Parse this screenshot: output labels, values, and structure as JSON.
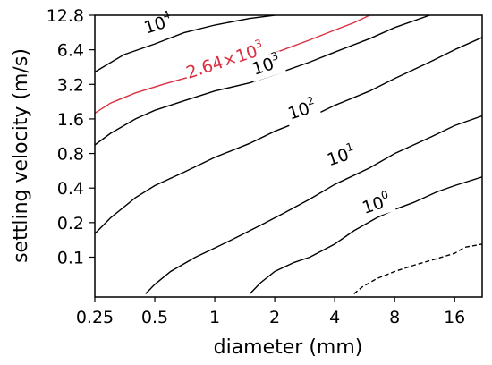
{
  "chart_data": {
    "type": "contour",
    "title": "",
    "xlabel": "diameter (mm)",
    "ylabel": "settling velocity (m/s)",
    "xscale": "log2",
    "yscale": "log2",
    "xlim": [
      0.25,
      22
    ],
    "ylim": [
      0.045,
      12.8
    ],
    "xticks": [
      {
        "value": 0.25,
        "label": "0.25"
      },
      {
        "value": 0.5,
        "label": "0.5"
      },
      {
        "value": 1,
        "label": "1"
      },
      {
        "value": 2,
        "label": "2"
      },
      {
        "value": 4,
        "label": "4"
      },
      {
        "value": 8,
        "label": "8"
      },
      {
        "value": 16,
        "label": "16"
      }
    ],
    "yticks": [
      {
        "value": 0.1,
        "label": "0.1"
      },
      {
        "value": 0.2,
        "label": "0.2"
      },
      {
        "value": 0.4,
        "label": "0.4"
      },
      {
        "value": 0.8,
        "label": "0.8"
      },
      {
        "value": 1.6,
        "label": "1.6"
      },
      {
        "value": 3.2,
        "label": "3.2"
      },
      {
        "value": 6.4,
        "label": "6.4"
      },
      {
        "value": 12.8,
        "label": "12.8"
      }
    ],
    "grid": false,
    "contours": [
      {
        "level": 10000,
        "label_base": "10",
        "label_exp": "4",
        "color": "#000000",
        "dash": false,
        "label_at": [
          0.53,
          9.6
        ],
        "label_angle": -18,
        "points": [
          [
            0.25,
            4.1
          ],
          [
            0.35,
            5.8
          ],
          [
            0.5,
            7.2
          ],
          [
            0.7,
            9.0
          ],
          [
            1.0,
            10.5
          ],
          [
            1.5,
            12.0
          ],
          [
            2.0,
            12.8
          ]
        ]
      },
      {
        "level": 2640,
        "label_base": "2.64×10",
        "label_exp": "3",
        "color": "#d9303f",
        "dash": false,
        "label_at": [
          1.15,
          4.6
        ],
        "label_angle": -18,
        "points": [
          [
            0.25,
            1.8
          ],
          [
            0.3,
            2.2
          ],
          [
            0.4,
            2.7
          ],
          [
            0.55,
            3.2
          ],
          [
            0.7,
            3.6
          ],
          [
            1.0,
            4.2
          ],
          [
            1.5,
            5.0
          ],
          [
            2.0,
            6.0
          ],
          [
            3.0,
            7.8
          ],
          [
            4.0,
            9.5
          ],
          [
            5.0,
            11.0
          ],
          [
            6.0,
            12.8
          ]
        ]
      },
      {
        "level": 1000,
        "label_base": "10",
        "label_exp": "3",
        "color": "#000000",
        "dash": false,
        "label_at": [
          1.85,
          4.2
        ],
        "label_angle": -18,
        "points": [
          [
            0.25,
            0.95
          ],
          [
            0.3,
            1.2
          ],
          [
            0.4,
            1.6
          ],
          [
            0.5,
            1.9
          ],
          [
            0.7,
            2.3
          ],
          [
            1.0,
            2.8
          ],
          [
            1.5,
            3.3
          ],
          [
            2.0,
            3.9
          ],
          [
            3.0,
            5.0
          ],
          [
            4.0,
            6.1
          ],
          [
            6.0,
            8.0
          ],
          [
            8.0,
            10.0
          ],
          [
            12.0,
            12.8
          ]
        ]
      },
      {
        "level": 100,
        "label_base": "10",
        "label_exp": "2",
        "color": "#000000",
        "dash": false,
        "label_at": [
          2.8,
          1.72
        ],
        "label_angle": -18,
        "points": [
          [
            0.25,
            0.16
          ],
          [
            0.3,
            0.22
          ],
          [
            0.4,
            0.33
          ],
          [
            0.5,
            0.42
          ],
          [
            0.7,
            0.55
          ],
          [
            1.0,
            0.74
          ],
          [
            1.5,
            0.98
          ],
          [
            2.0,
            1.25
          ],
          [
            3.0,
            1.65
          ],
          [
            4.0,
            2.1
          ],
          [
            6.0,
            2.8
          ],
          [
            8.0,
            3.6
          ],
          [
            12.0,
            5.0
          ],
          [
            16.0,
            6.4
          ],
          [
            22.0,
            8.2
          ]
        ]
      },
      {
        "level": 10,
        "label_base": "10",
        "label_exp": "1",
        "color": "#000000",
        "dash": false,
        "label_at": [
          4.4,
          0.68
        ],
        "label_angle": -18,
        "points": [
          [
            0.45,
            0.048
          ],
          [
            0.5,
            0.058
          ],
          [
            0.6,
            0.075
          ],
          [
            0.8,
            0.1
          ],
          [
            1.0,
            0.12
          ],
          [
            1.3,
            0.15
          ],
          [
            1.7,
            0.19
          ],
          [
            2.2,
            0.24
          ],
          [
            3.0,
            0.32
          ],
          [
            4.0,
            0.43
          ],
          [
            6.0,
            0.6
          ],
          [
            8.0,
            0.8
          ],
          [
            12.0,
            1.1
          ],
          [
            16.0,
            1.4
          ],
          [
            22.0,
            1.7
          ]
        ]
      },
      {
        "level": 1,
        "label_base": "10",
        "label_exp": "0",
        "color": "#000000",
        "dash": false,
        "label_at": [
          6.6,
          0.26
        ],
        "label_angle": -18,
        "points": [
          [
            1.5,
            0.048
          ],
          [
            1.7,
            0.06
          ],
          [
            2.0,
            0.075
          ],
          [
            2.5,
            0.09
          ],
          [
            3.0,
            0.1
          ],
          [
            4.0,
            0.13
          ],
          [
            5.0,
            0.17
          ],
          [
            6.5,
            0.22
          ],
          [
            8.0,
            0.26
          ],
          [
            10.0,
            0.3
          ],
          [
            13.0,
            0.37
          ],
          [
            16.0,
            0.42
          ],
          [
            22.0,
            0.5
          ]
        ]
      },
      {
        "level": 0.1,
        "label_base": "",
        "label_exp": "",
        "color": "#000000",
        "dash": true,
        "label_at": null,
        "label_angle": 0,
        "points": [
          [
            5.0,
            0.048
          ],
          [
            5.5,
            0.055
          ],
          [
            6.5,
            0.065
          ],
          [
            8.0,
            0.075
          ],
          [
            10.0,
            0.085
          ],
          [
            13.0,
            0.097
          ],
          [
            16.0,
            0.108
          ],
          [
            18.0,
            0.122
          ],
          [
            22.0,
            0.13
          ]
        ]
      }
    ]
  }
}
